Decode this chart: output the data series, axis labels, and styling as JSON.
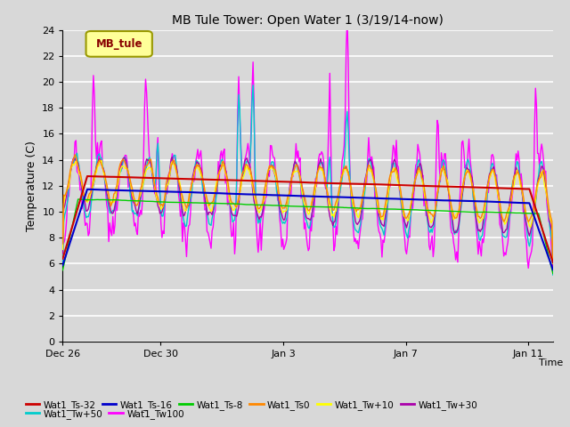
{
  "title": "MB Tule Tower: Open Water 1 (3/19/14-now)",
  "xlabel": "Time",
  "ylabel": "Temperature (C)",
  "ylim": [
    0,
    24
  ],
  "yticks": [
    0,
    2,
    4,
    6,
    8,
    10,
    12,
    14,
    16,
    18,
    20,
    22,
    24
  ],
  "xtick_labels": [
    "Dec 26",
    "Dec 30",
    "Jan 3",
    "Jan 7",
    "Jan 11"
  ],
  "xtick_positions": [
    0,
    4,
    9,
    14,
    19
  ],
  "bg_color": "#d8d8d8",
  "plot_bg_color": "#d8d8d8",
  "grid_color": "#ffffff",
  "series_colors": {
    "Wat1_Ts-32": "#cc0000",
    "Wat1_Ts-16": "#0000cc",
    "Wat1_Ts-8": "#00cc00",
    "Wat1_Ts0": "#ff8800",
    "Wat1_Tw+10": "#ffff00",
    "Wat1_Tw+30": "#aa00aa",
    "Wat1_Tw+50": "#00cccc",
    "Wat1_Tw100": "#ff00ff"
  },
  "legend_box_color": "#ffff99",
  "legend_box_edge": "#999900",
  "legend_box_text": "MB_tule",
  "legend_box_text_color": "#880000",
  "n_days": 20,
  "seed": 42
}
